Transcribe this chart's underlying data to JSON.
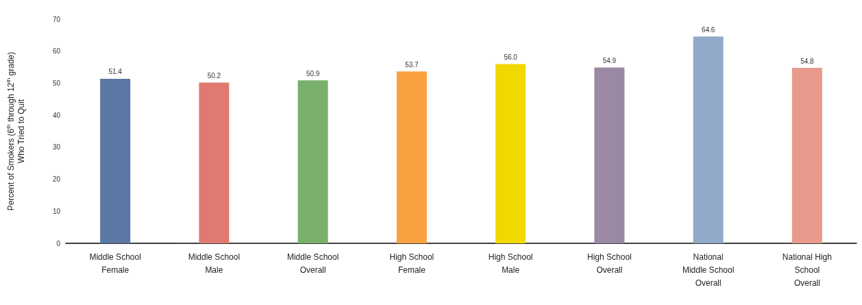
{
  "chart_data": {
    "type": "bar",
    "ylabel": "Percent of Smokers (6$^{th}$ through 12$^{th}$ grade)\nWho Tried to Quit",
    "categories": [
      "Middle School\nFemale",
      "Middle School\nMale",
      "Middle School\nOverall",
      "High School\nFemale",
      "High School\nMale",
      "High School\nOverall",
      "National\nMiddle School\nOverall",
      "National High\nSchool\nOverall"
    ],
    "values": [
      51.4,
      50.2,
      50.9,
      53.7,
      56.0,
      54.9,
      64.6,
      54.8
    ],
    "value_labels": [
      "51.4",
      "50.2",
      "50.9",
      "53.7",
      "56.0",
      "54.9",
      "64.6",
      "54.8"
    ],
    "colors": [
      "#5b77a3",
      "#e07a70",
      "#79b06b",
      "#f9a040",
      "#f0d800",
      "#9b88a5",
      "#93a9c9",
      "#e89a8d"
    ],
    "ylim": [
      0,
      70
    ],
    "yticks": [
      0,
      10,
      20,
      30,
      40,
      50,
      60,
      70
    ],
    "grid": false
  }
}
